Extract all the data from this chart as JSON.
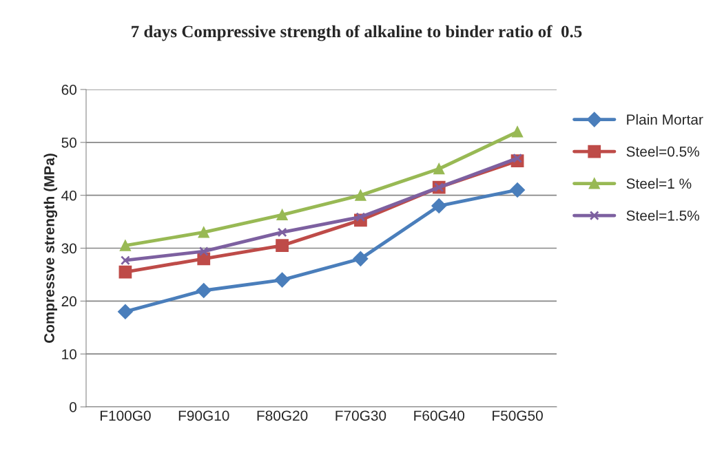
{
  "chart_data": {
    "type": "line",
    "title": "7 days Compressive strength of alkaline to binder ratio of  0.5",
    "ylabel": "Compressve strength (MPa)",
    "categories": [
      "F100G0",
      "F90G10",
      "F80G20",
      "F70G30",
      "F60G40",
      "F50G50"
    ],
    "series": [
      {
        "name": "Plain Mortar",
        "color": "#4a7ebb",
        "marker": "diamond",
        "values": [
          18,
          22,
          24,
          28,
          38,
          41
        ]
      },
      {
        "name": "Steel=0.5%",
        "color": "#be4b48",
        "marker": "square",
        "values": [
          25.5,
          28,
          30.5,
          35.3,
          41.5,
          46.5
        ]
      },
      {
        "name": "Steel=1 %",
        "color": "#98b954",
        "marker": "triangle",
        "values": [
          30.5,
          33,
          36.3,
          40,
          45,
          52
        ]
      },
      {
        "name": "Steel=1.5%",
        "color": "#7d60a0",
        "marker": "cross",
        "values": [
          27.7,
          29.4,
          33,
          35.9,
          41.5,
          47
        ]
      }
    ],
    "ylim": [
      0,
      60
    ],
    "yticks": [
      0,
      10,
      20,
      30,
      40,
      50,
      60
    ],
    "grid": "y",
    "legend": "right",
    "line_style": "solid"
  }
}
